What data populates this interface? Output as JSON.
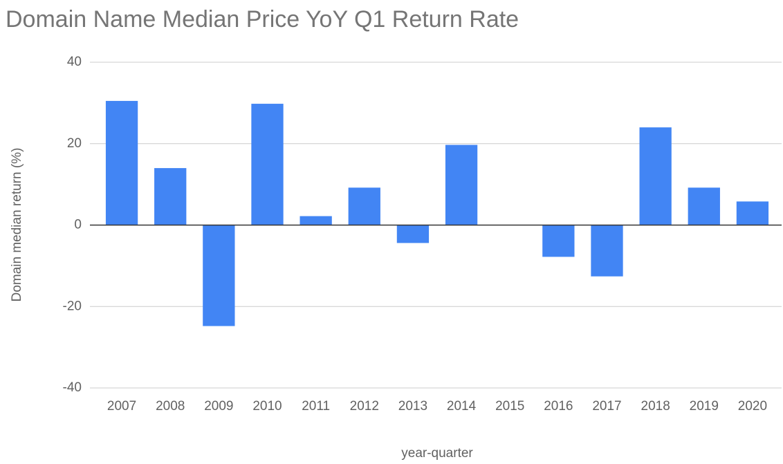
{
  "chart_data": {
    "type": "bar",
    "title": "Domain Name Median Price YoY Q1 Return Rate",
    "x_label": "year-quarter",
    "y_label": "Domain median return (%)",
    "categories": [
      "2007",
      "2008",
      "2009",
      "2010",
      "2011",
      "2012",
      "2013",
      "2014",
      "2015",
      "2016",
      "2017",
      "2018",
      "2019",
      "2020"
    ],
    "values": [
      30.5,
      14,
      -24.8,
      29.8,
      2.2,
      9.2,
      -4.4,
      19.7,
      0,
      -7.8,
      -12.6,
      24,
      9.2,
      5.8
    ],
    "color": "#4285f4",
    "ylim": [
      -40,
      40
    ],
    "yticks": [
      -40,
      -20,
      0,
      20,
      40
    ],
    "grid": true
  }
}
